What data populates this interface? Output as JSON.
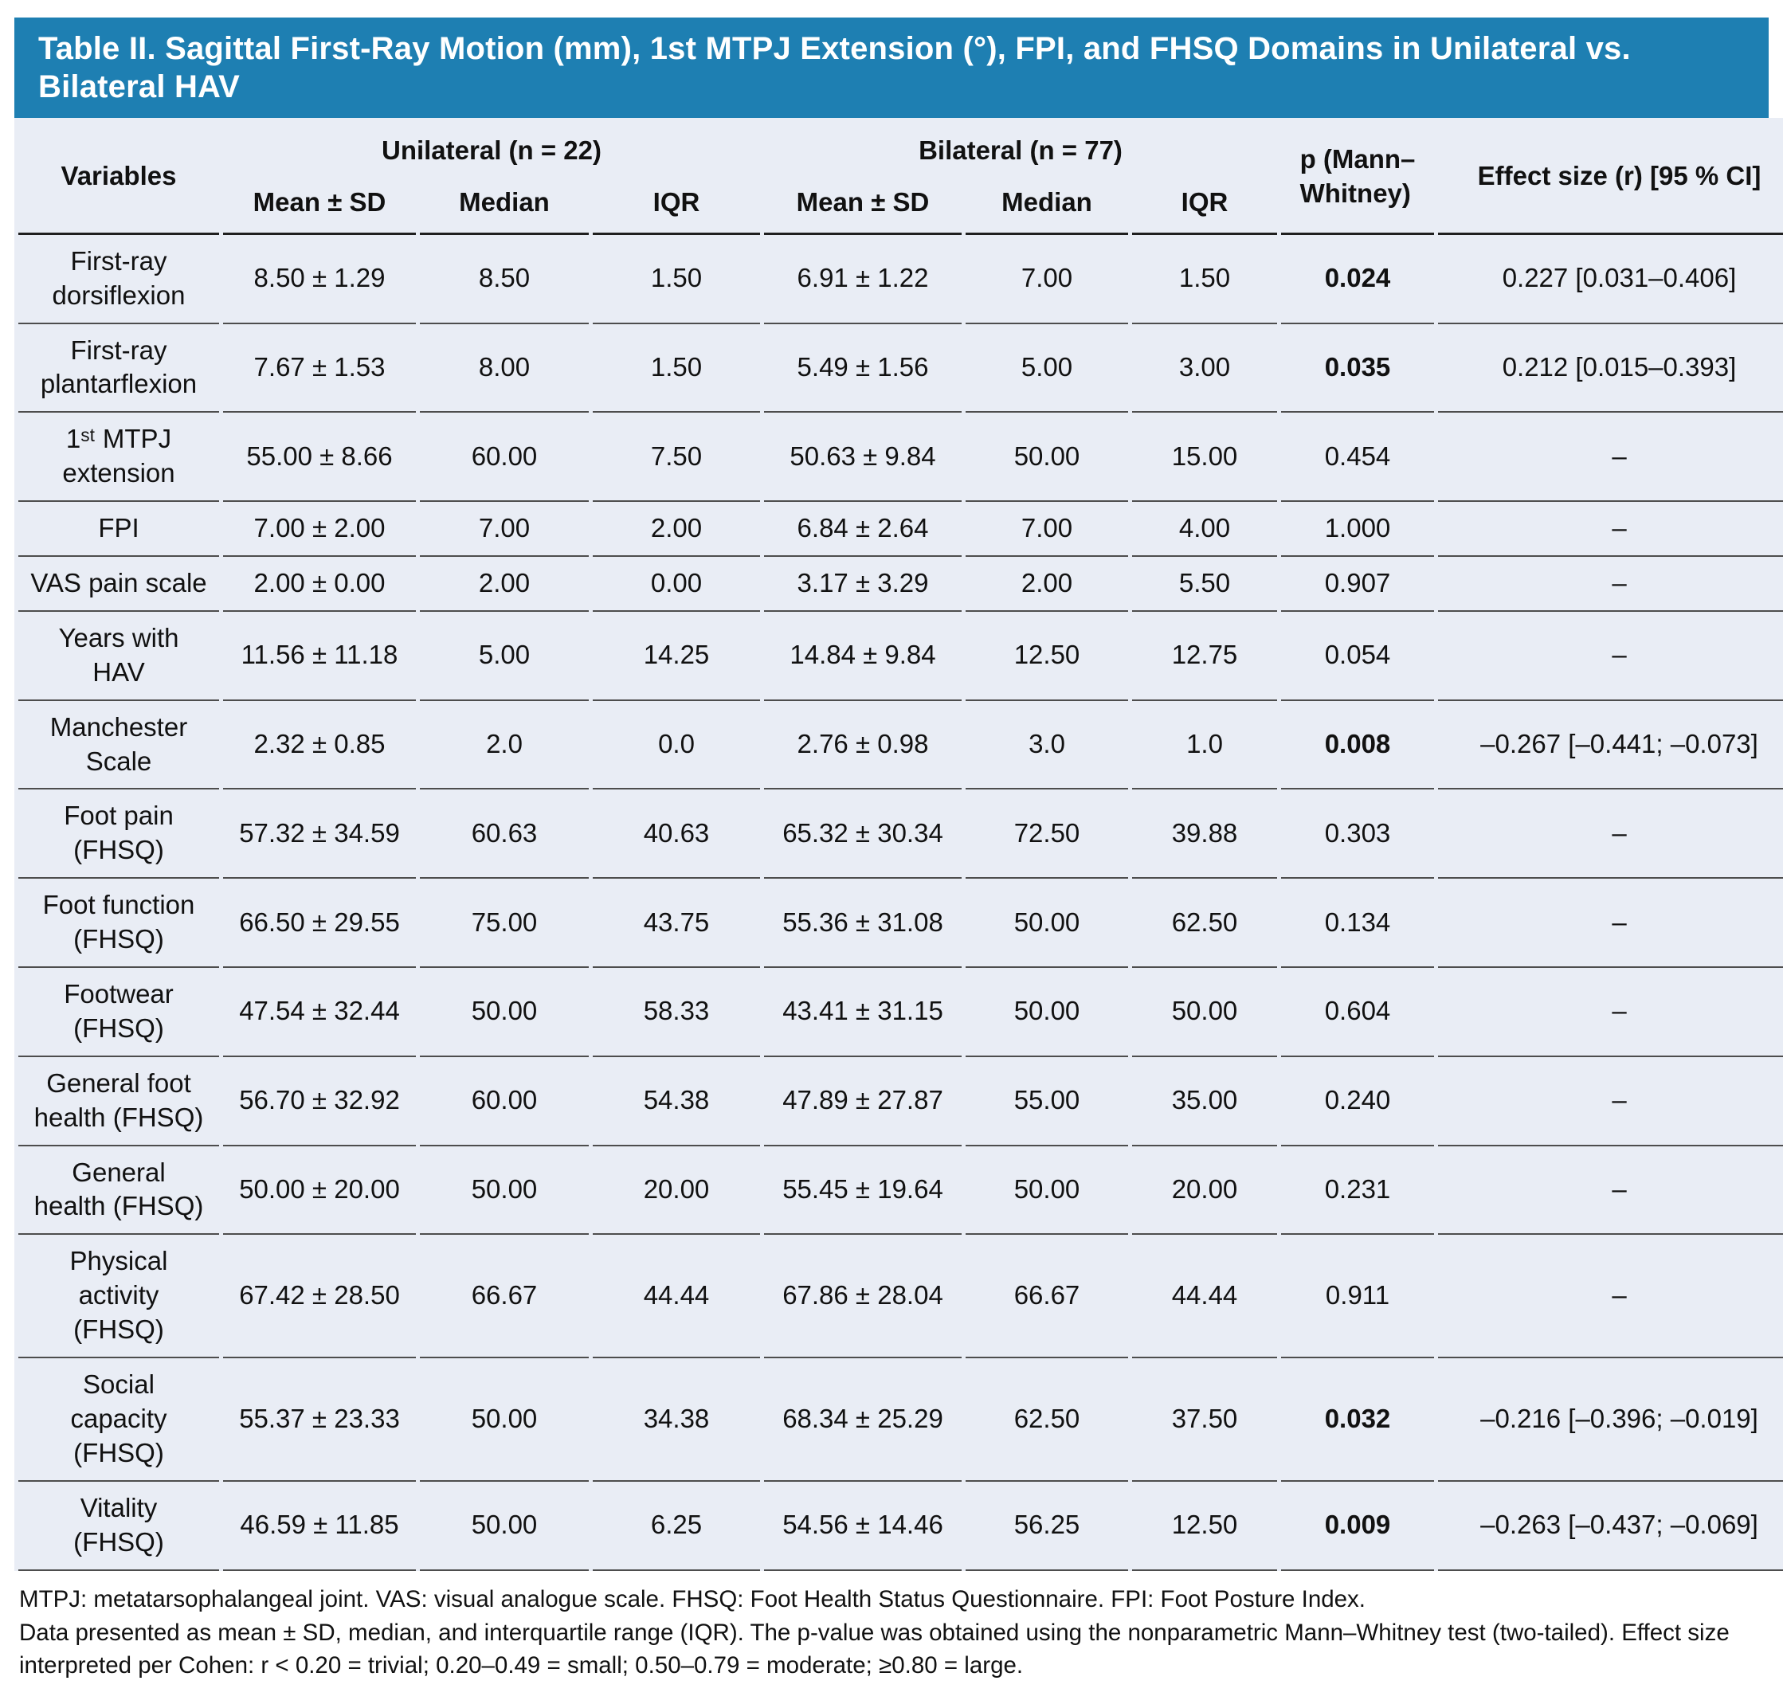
{
  "title": "Table II. Sagittal First-Ray Motion (mm), 1st MTPJ Extension (°), FPI, and FHSQ Domains in Unilateral vs. Bilateral HAV",
  "colors": {
    "title_bar_blue": "#1e7fb2",
    "table_background": "#e9edf5",
    "row_divider": "#4d4d4d"
  },
  "table": {
    "header": {
      "variables_label": "Variables",
      "group_unilateral": "Unilateral (n = 22)",
      "group_bilateral": "Bilateral (n = 77)",
      "sub_mean_sd": "Mean ± SD",
      "sub_median": "Median",
      "sub_iqr": "IQR",
      "p_label": "p (Mann–\nWhitney)",
      "effect_label": "Effect size (r) [95 % CI]"
    },
    "rows": [
      {
        "variable": "First-ray\ndorsiflexion",
        "uni_mean_sd": "8.50 ± 1.29",
        "uni_median": "8.50",
        "uni_iqr": "1.50",
        "bil_mean_sd": "6.91 ± 1.22",
        "bil_median": "7.00",
        "bil_iqr": "1.50",
        "p": "0.024",
        "p_bold": true,
        "effect": "0.227 [0.031–0.406]"
      },
      {
        "variable": "First-ray\nplantarflexion",
        "uni_mean_sd": "7.67 ± 1.53",
        "uni_median": "8.00",
        "uni_iqr": "1.50",
        "bil_mean_sd": "5.49 ± 1.56",
        "bil_median": "5.00",
        "bil_iqr": "3.00",
        "p": "0.035",
        "p_bold": true,
        "effect": "0.212 [0.015–0.393]"
      },
      {
        "variable": "1ˢᵗ MTPJ\nextension",
        "uni_mean_sd": "55.00 ± 8.66",
        "uni_median": "60.00",
        "uni_iqr": "7.50",
        "bil_mean_sd": "50.63 ± 9.84",
        "bil_median": "50.00",
        "bil_iqr": "15.00",
        "p": "0.454",
        "p_bold": false,
        "effect": "–"
      },
      {
        "variable": "FPI",
        "uni_mean_sd": "7.00 ± 2.00",
        "uni_median": "7.00",
        "uni_iqr": "2.00",
        "bil_mean_sd": "6.84 ± 2.64",
        "bil_median": "7.00",
        "bil_iqr": "4.00",
        "p": "1.000",
        "p_bold": false,
        "effect": "–"
      },
      {
        "variable": "VAS pain scale",
        "uni_mean_sd": "2.00 ± 0.00",
        "uni_median": "2.00",
        "uni_iqr": "0.00",
        "bil_mean_sd": "3.17 ± 3.29",
        "bil_median": "2.00",
        "bil_iqr": "5.50",
        "p": "0.907",
        "p_bold": false,
        "effect": "–"
      },
      {
        "variable": "Years with\nHAV",
        "uni_mean_sd": "11.56 ± 11.18",
        "uni_median": "5.00",
        "uni_iqr": "14.25",
        "bil_mean_sd": "14.84 ± 9.84",
        "bil_median": "12.50",
        "bil_iqr": "12.75",
        "p": "0.054",
        "p_bold": false,
        "effect": "–"
      },
      {
        "variable": "Manchester\nScale",
        "uni_mean_sd": "2.32 ± 0.85",
        "uni_median": "2.0",
        "uni_iqr": "0.0",
        "bil_mean_sd": "2.76 ± 0.98",
        "bil_median": "3.0",
        "bil_iqr": "1.0",
        "p": "0.008",
        "p_bold": true,
        "effect": "–0.267 [–0.441; –0.073]"
      },
      {
        "variable": "Foot pain\n(FHSQ)",
        "uni_mean_sd": "57.32 ± 34.59",
        "uni_median": "60.63",
        "uni_iqr": "40.63",
        "bil_mean_sd": "65.32 ± 30.34",
        "bil_median": "72.50",
        "bil_iqr": "39.88",
        "p": "0.303",
        "p_bold": false,
        "effect": "–"
      },
      {
        "variable": "Foot function\n(FHSQ)",
        "uni_mean_sd": "66.50 ± 29.55",
        "uni_median": "75.00",
        "uni_iqr": "43.75",
        "bil_mean_sd": "55.36 ± 31.08",
        "bil_median": "50.00",
        "bil_iqr": "62.50",
        "p": "0.134",
        "p_bold": false,
        "effect": "–"
      },
      {
        "variable": "Footwear\n(FHSQ)",
        "uni_mean_sd": "47.54 ± 32.44",
        "uni_median": "50.00",
        "uni_iqr": "58.33",
        "bil_mean_sd": "43.41 ± 31.15",
        "bil_median": "50.00",
        "bil_iqr": "50.00",
        "p": "0.604",
        "p_bold": false,
        "effect": "–"
      },
      {
        "variable": "General foot\nhealth (FHSQ)",
        "uni_mean_sd": "56.70 ± 32.92",
        "uni_median": "60.00",
        "uni_iqr": "54.38",
        "bil_mean_sd": "47.89 ± 27.87",
        "bil_median": "55.00",
        "bil_iqr": "35.00",
        "p": "0.240",
        "p_bold": false,
        "effect": "–"
      },
      {
        "variable": "General\nhealth (FHSQ)",
        "uni_mean_sd": "50.00 ± 20.00",
        "uni_median": "50.00",
        "uni_iqr": "20.00",
        "bil_mean_sd": "55.45 ± 19.64",
        "bil_median": "50.00",
        "bil_iqr": "20.00",
        "p": "0.231",
        "p_bold": false,
        "effect": "–"
      },
      {
        "variable": "Physical\nactivity\n(FHSQ)",
        "uni_mean_sd": "67.42 ± 28.50",
        "uni_median": "66.67",
        "uni_iqr": "44.44",
        "bil_mean_sd": "67.86 ± 28.04",
        "bil_median": "66.67",
        "bil_iqr": "44.44",
        "p": "0.911",
        "p_bold": false,
        "effect": "–"
      },
      {
        "variable": "Social\ncapacity\n(FHSQ)",
        "uni_mean_sd": "55.37 ± 23.33",
        "uni_median": "50.00",
        "uni_iqr": "34.38",
        "bil_mean_sd": "68.34 ± 25.29",
        "bil_median": "62.50",
        "bil_iqr": "37.50",
        "p": "0.032",
        "p_bold": true,
        "effect": "–0.216 [–0.396; –0.019]"
      },
      {
        "variable": "Vitality\n(FHSQ)",
        "uni_mean_sd": "46.59 ± 11.85",
        "uni_median": "50.00",
        "uni_iqr": "6.25",
        "bil_mean_sd": "54.56 ± 14.46",
        "bil_median": "56.25",
        "bil_iqr": "12.50",
        "p": "0.009",
        "p_bold": true,
        "effect": "–0.263 [–0.437; –0.069]"
      }
    ]
  },
  "footnotes": [
    "MTPJ: metatarsophalangeal joint. VAS: visual analogue scale. FHSQ: Foot Health Status Questionnaire. FPI: Foot Posture Index.",
    "Data presented as mean ± SD, median, and interquartile range (IQR). The p-value was obtained using the nonparametric Mann–Whitney test (two-tailed). Effect size interpreted per Cohen: r < 0.20 = trivial; 0.20–0.49 = small; 0.50–0.79 = moderate; ≥0.80 = large."
  ]
}
